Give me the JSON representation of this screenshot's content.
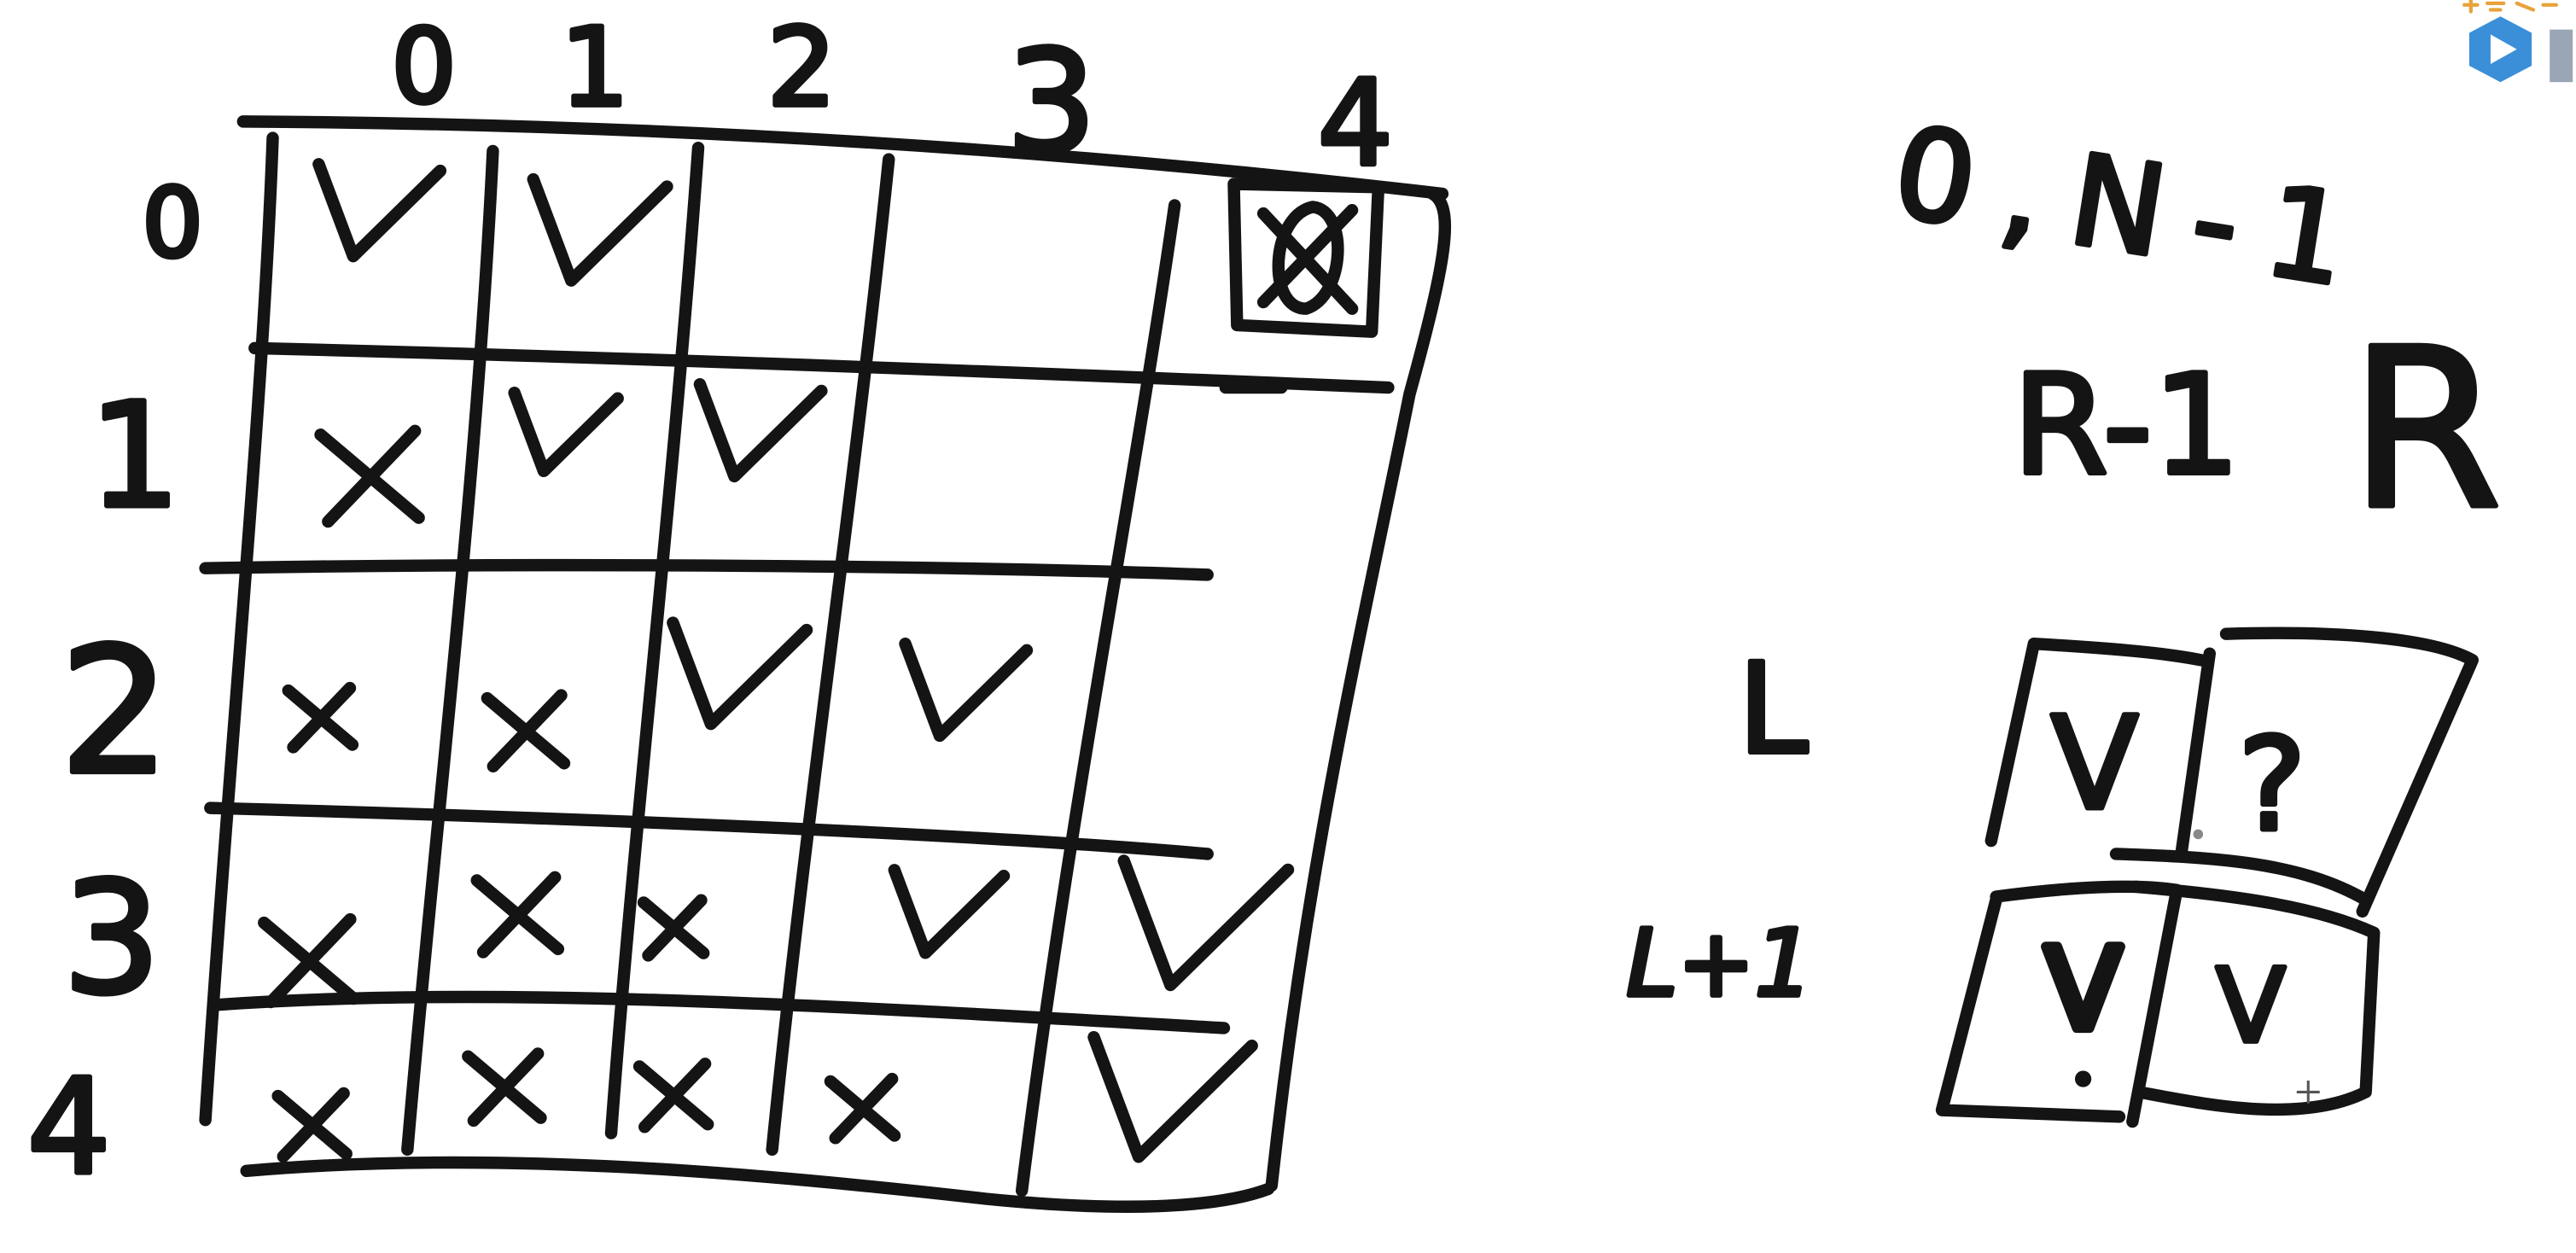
{
  "grid": {
    "column_headers": [
      "0",
      "1",
      "2",
      "3",
      "4"
    ],
    "row_headers": [
      "0",
      "1",
      "2",
      "3",
      "4"
    ],
    "cells": [
      [
        "check",
        "check",
        "",
        "",
        "crossed-out"
      ],
      [
        "cross",
        "check",
        "check",
        "",
        ""
      ],
      [
        "cross",
        "cross",
        "check",
        "check",
        ""
      ],
      [
        "cross",
        "cross",
        "cross",
        "check",
        "check"
      ],
      [
        "cross",
        "cross",
        "cross",
        "cross",
        "check"
      ]
    ]
  },
  "notes": {
    "range": "0,N-1",
    "r_minus_one": "R-1",
    "r": "R",
    "l": "L",
    "l_plus_one": "L+1"
  },
  "mini_grid": {
    "cells": [
      "V",
      "?",
      "V",
      "V"
    ]
  },
  "logo": {
    "icon": "play-cube-icon",
    "text": "海量资"
  },
  "colors": {
    "ink": "#141414",
    "background": "#ffffff",
    "logo": "#3a8fd8",
    "logo_text": "#e8a33a"
  }
}
